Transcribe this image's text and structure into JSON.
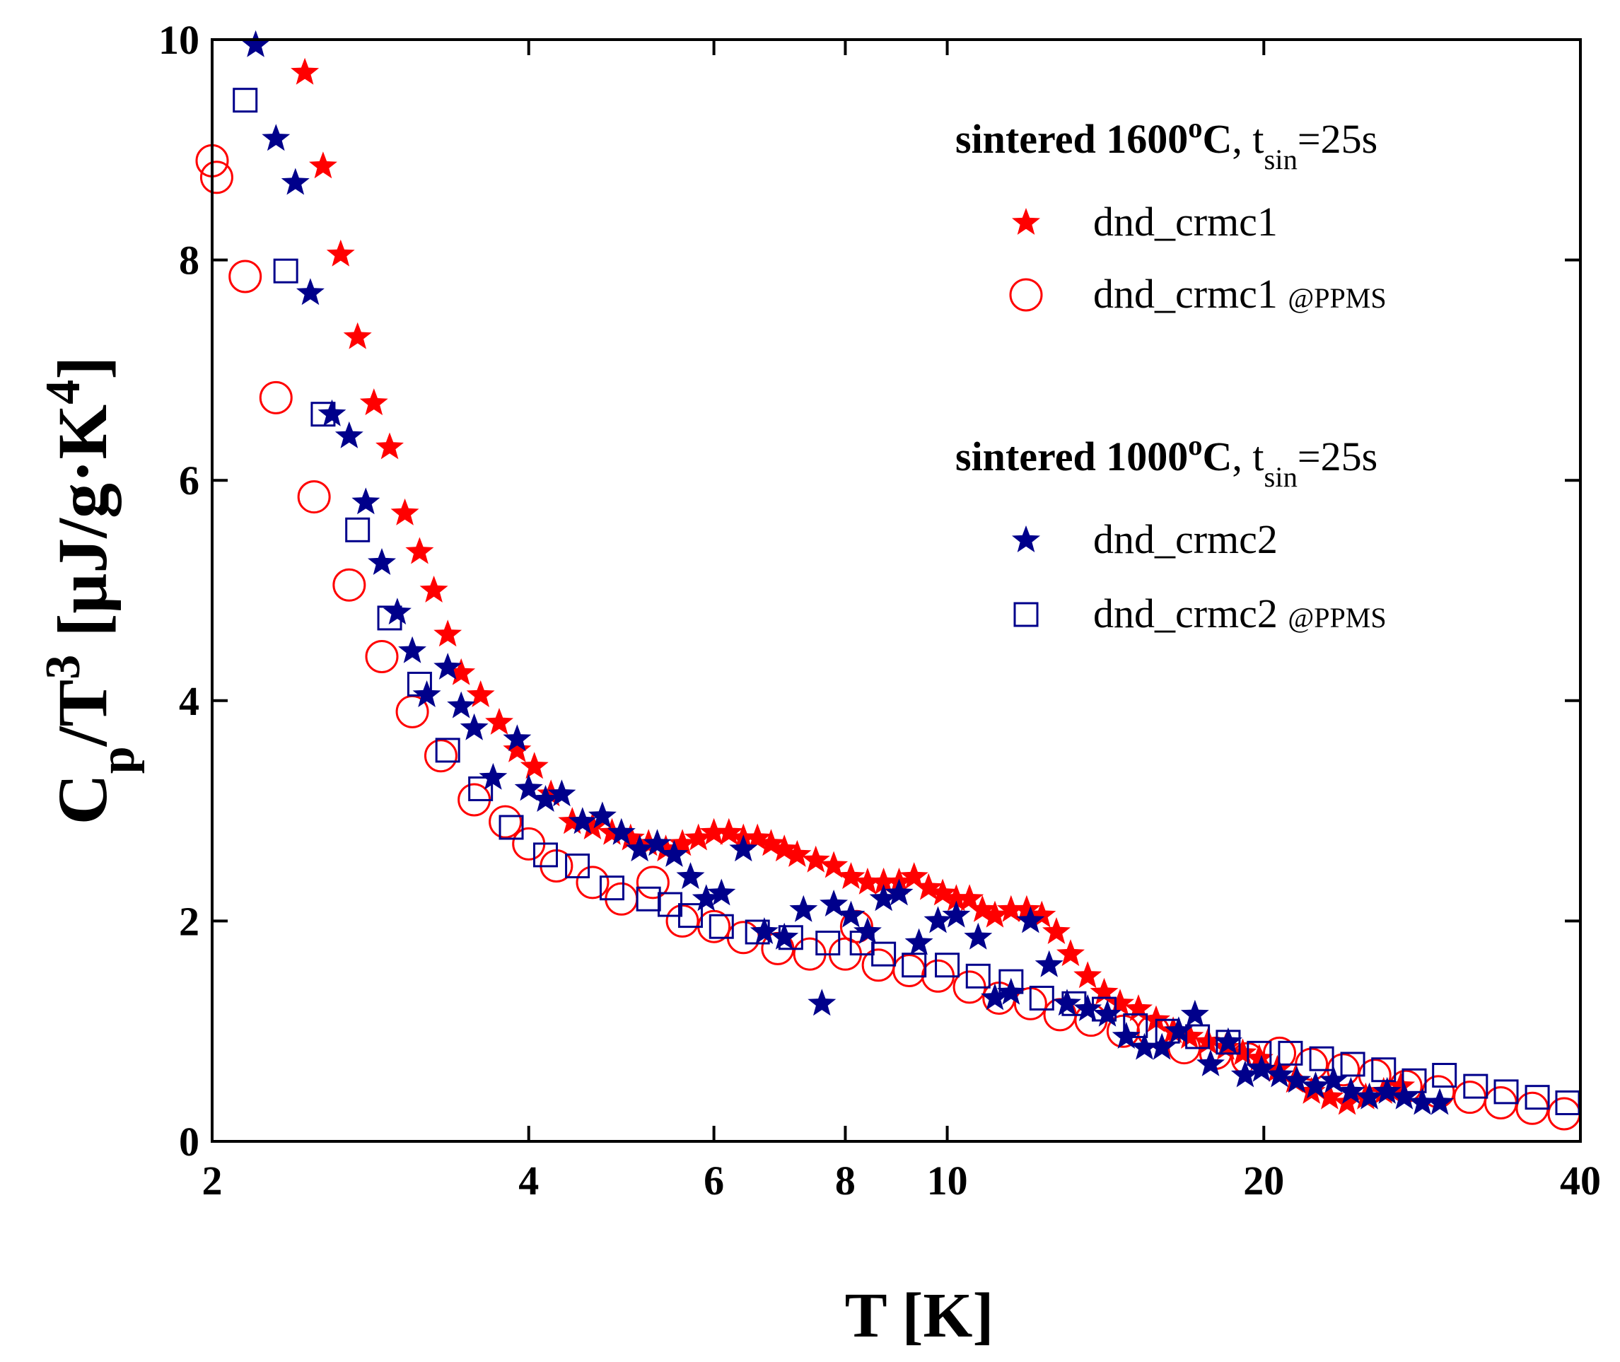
{
  "chart_data": {
    "type": "scatter",
    "xlabel": "T [K]",
    "ylabel_parts": [
      {
        "text": "C",
        "style": "normal"
      },
      {
        "text": "p",
        "style": "sub"
      },
      {
        "text": "/T",
        "style": "normal"
      },
      {
        "text": "3",
        "style": "sup"
      },
      {
        "text": " [μJ/g·K",
        "style": "normal"
      },
      {
        "text": "4",
        "style": "sup"
      },
      {
        "text": "]",
        "style": "normal"
      }
    ],
    "xscale": "log",
    "xlim": [
      2,
      40
    ],
    "xticks": [
      2,
      4,
      6,
      8,
      10,
      20,
      40
    ],
    "ylim": [
      0,
      10
    ],
    "yticks": [
      0,
      2,
      4,
      6,
      8,
      10
    ],
    "legend_groups": [
      {
        "title_parts": [
          {
            "text": "sintered 1600",
            "style": "bold"
          },
          {
            "text": "o",
            "style": "bold-sup"
          },
          {
            "text": "C",
            "style": "bold"
          },
          {
            "text": ", t",
            "style": "normal"
          },
          {
            "text": "sin",
            "style": "sub"
          },
          {
            "text": "=25s",
            "style": "normal"
          }
        ],
        "series": [
          0,
          1
        ]
      },
      {
        "title_parts": [
          {
            "text": "sintered 1000",
            "style": "bold"
          },
          {
            "text": "o",
            "style": "bold-sup"
          },
          {
            "text": "C",
            "style": "bold"
          },
          {
            "text": ", t",
            "style": "normal"
          },
          {
            "text": "sin",
            "style": "sub"
          },
          {
            "text": "=25s",
            "style": "normal"
          }
        ],
        "series": [
          2,
          3
        ]
      }
    ],
    "series": [
      {
        "name": "dnd_crmc1",
        "color": "#ff0000",
        "marker": "star",
        "x": [
          2.45,
          2.55,
          2.65,
          2.75,
          2.85,
          2.95,
          3.05,
          3.15,
          3.25,
          3.35,
          3.45,
          3.6,
          3.75,
          3.9,
          4.05,
          4.2,
          4.4,
          4.6,
          4.8,
          5.0,
          5.2,
          5.4,
          5.6,
          5.8,
          6.0,
          6.2,
          6.4,
          6.6,
          6.8,
          7.0,
          7.2,
          7.5,
          7.8,
          8.1,
          8.4,
          8.7,
          9.0,
          9.3,
          9.6,
          9.9,
          10.2,
          10.5,
          10.8,
          11.1,
          11.5,
          11.9,
          12.3,
          12.7,
          13.1,
          13.6,
          14.1,
          14.6,
          15.2,
          15.8,
          16.4,
          17.0,
          17.7,
          18.4,
          19.1,
          19.8,
          20.6,
          21.4,
          22.2,
          23.1,
          24.0,
          25.0,
          26.0,
          27.0
        ],
        "values": [
          9.7,
          8.85,
          8.05,
          7.3,
          6.7,
          6.3,
          5.7,
          5.35,
          5.0,
          4.6,
          4.25,
          4.05,
          3.8,
          3.55,
          3.4,
          3.15,
          2.9,
          2.85,
          2.8,
          2.75,
          2.7,
          2.65,
          2.7,
          2.75,
          2.8,
          2.8,
          2.75,
          2.75,
          2.7,
          2.65,
          2.6,
          2.55,
          2.5,
          2.4,
          2.35,
          2.35,
          2.35,
          2.4,
          2.3,
          2.25,
          2.2,
          2.2,
          2.1,
          2.05,
          2.1,
          2.1,
          2.05,
          1.9,
          1.7,
          1.5,
          1.35,
          1.25,
          1.2,
          1.1,
          1.0,
          0.95,
          0.9,
          0.85,
          0.8,
          0.75,
          0.65,
          0.55,
          0.45,
          0.4,
          0.35,
          0.4,
          0.45,
          0.5
        ]
      },
      {
        "name": "dnd_crmc1",
        "note": "@PPMS",
        "color": "#ff0000",
        "marker": "circle",
        "x": [
          2.0,
          2.02,
          2.15,
          2.3,
          2.5,
          2.7,
          2.9,
          3.1,
          3.3,
          3.55,
          3.8,
          4.0,
          4.25,
          4.6,
          4.9,
          5.25,
          5.6,
          6.0,
          6.4,
          6.9,
          7.4,
          8.0,
          8.2,
          8.6,
          9.2,
          9.8,
          10.5,
          11.2,
          12.0,
          12.8,
          13.7,
          14.7,
          15.7,
          16.8,
          18.0,
          19.3,
          20.7,
          22.2,
          23.8,
          25.5,
          27.3,
          29.3,
          31.4,
          33.6,
          36.0,
          38.6
        ],
        "values": [
          8.9,
          8.75,
          7.85,
          6.75,
          5.85,
          5.05,
          4.4,
          3.9,
          3.5,
          3.1,
          2.9,
          2.7,
          2.5,
          2.35,
          2.2,
          2.35,
          2.0,
          1.95,
          1.85,
          1.75,
          1.7,
          1.7,
          1.95,
          1.6,
          1.55,
          1.5,
          1.4,
          1.3,
          1.25,
          1.15,
          1.1,
          1.0,
          1.0,
          0.85,
          0.8,
          0.75,
          0.8,
          0.7,
          0.65,
          0.6,
          0.5,
          0.45,
          0.4,
          0.35,
          0.3,
          0.25
        ]
      },
      {
        "name": "dnd_crmc2",
        "color": "#00008b",
        "marker": "star",
        "x": [
          2.2,
          2.3,
          2.4,
          2.48,
          2.6,
          2.7,
          2.8,
          2.9,
          3.0,
          3.1,
          3.2,
          3.35,
          3.45,
          3.55,
          3.7,
          3.9,
          4.0,
          4.15,
          4.3,
          4.5,
          4.7,
          4.9,
          5.1,
          5.3,
          5.5,
          5.7,
          5.9,
          6.1,
          6.4,
          6.7,
          7.0,
          7.3,
          7.6,
          7.8,
          8.1,
          8.4,
          8.7,
          9.0,
          9.4,
          9.8,
          10.2,
          10.7,
          11.1,
          11.5,
          12.0,
          12.5,
          13.0,
          13.6,
          14.2,
          14.8,
          15.4,
          16.0,
          16.6,
          17.2,
          17.8,
          18.5,
          19.2,
          19.9,
          20.7,
          21.5,
          22.4,
          23.3,
          24.2,
          25.2,
          26.2,
          27.2,
          28.3,
          29.4
        ],
        "values": [
          9.95,
          9.1,
          8.7,
          7.7,
          6.6,
          6.4,
          5.8,
          5.25,
          4.8,
          4.45,
          4.05,
          4.3,
          3.95,
          3.75,
          3.3,
          3.65,
          3.2,
          3.1,
          3.15,
          2.9,
          2.95,
          2.8,
          2.65,
          2.7,
          2.6,
          2.4,
          2.2,
          2.25,
          2.65,
          1.9,
          1.85,
          2.1,
          1.25,
          2.15,
          2.05,
          1.9,
          2.2,
          2.25,
          1.8,
          2.0,
          2.05,
          1.85,
          1.3,
          1.35,
          2.0,
          1.6,
          1.25,
          1.2,
          1.15,
          0.95,
          0.85,
          0.85,
          1.0,
          1.15,
          0.7,
          0.9,
          0.6,
          0.65,
          0.6,
          0.55,
          0.5,
          0.55,
          0.45,
          0.4,
          0.45,
          0.4,
          0.35,
          0.35
        ]
      },
      {
        "name": "dnd_crmc2",
        "note": "@PPMS",
        "color": "#00008b",
        "marker": "square",
        "x": [
          2.15,
          2.35,
          2.55,
          2.75,
          2.95,
          3.15,
          3.35,
          3.6,
          3.85,
          4.15,
          4.45,
          4.8,
          5.2,
          5.45,
          5.7,
          6.1,
          6.6,
          7.1,
          7.7,
          8.3,
          8.7,
          9.3,
          10.0,
          10.7,
          11.5,
          12.3,
          13.2,
          14.1,
          15.1,
          16.2,
          17.3,
          18.5,
          19.8,
          21.2,
          22.7,
          24.3,
          26.0,
          27.8,
          29.7,
          31.8,
          34.0,
          36.4,
          38.9
        ],
        "values": [
          9.45,
          7.9,
          6.6,
          5.55,
          4.75,
          4.15,
          3.55,
          3.2,
          2.85,
          2.6,
          2.5,
          2.3,
          2.2,
          2.15,
          2.05,
          1.95,
          1.9,
          1.85,
          1.8,
          1.8,
          1.7,
          1.6,
          1.6,
          1.5,
          1.45,
          1.3,
          1.25,
          1.2,
          1.05,
          1.0,
          0.95,
          0.9,
          0.8,
          0.8,
          0.75,
          0.7,
          0.65,
          0.55,
          0.6,
          0.5,
          0.45,
          0.4,
          0.35
        ]
      }
    ]
  }
}
